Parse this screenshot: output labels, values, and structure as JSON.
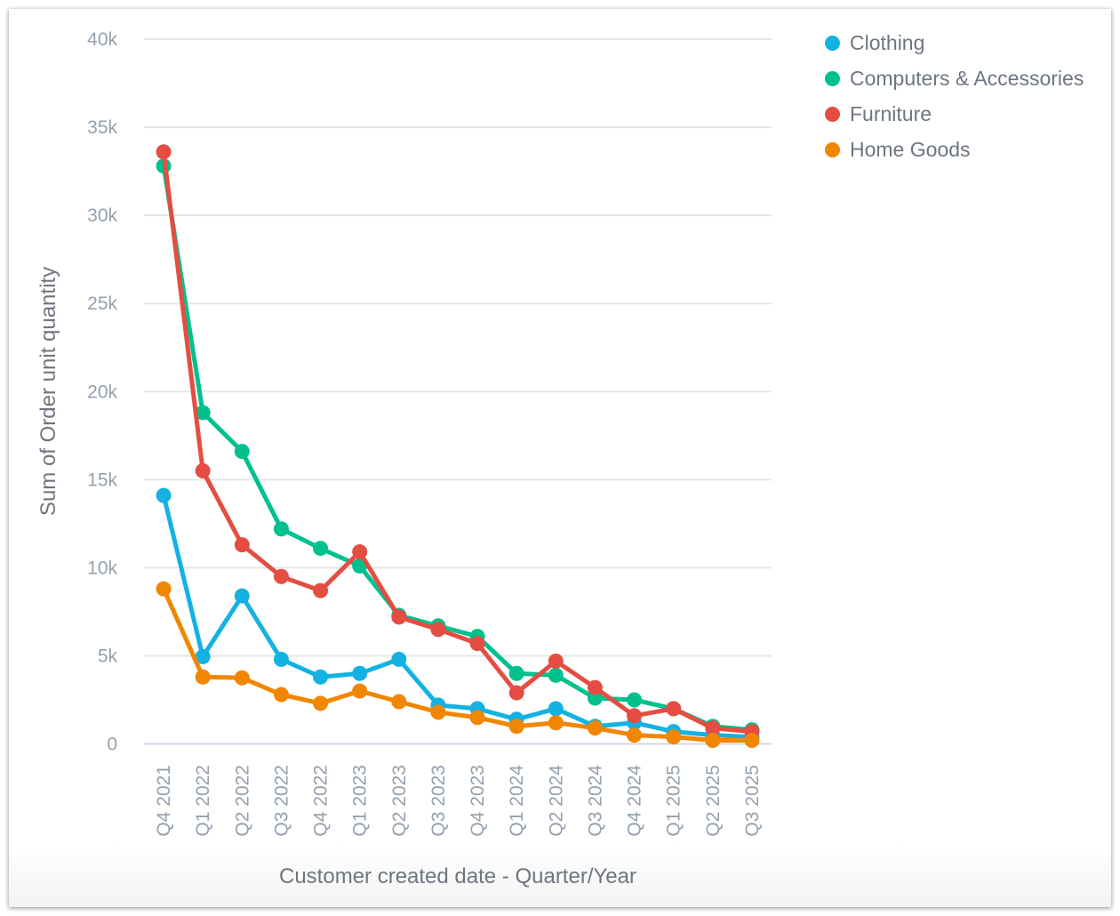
{
  "chart_data": {
    "type": "line",
    "title": "",
    "xlabel": "Customer created date - Quarter/Year",
    "ylabel": "Sum of Order unit quantity",
    "ylim": [
      0,
      40000
    ],
    "yticks": [
      0,
      5000,
      10000,
      15000,
      20000,
      25000,
      30000,
      35000,
      40000
    ],
    "ytick_labels": [
      "0",
      "5k",
      "10k",
      "15k",
      "20k",
      "25k",
      "30k",
      "35k",
      "40k"
    ],
    "grid": true,
    "legend_position": "top-right",
    "categories": [
      "Q4 2021",
      "Q1 2022",
      "Q2 2022",
      "Q3 2022",
      "Q4 2022",
      "Q1 2023",
      "Q2 2023",
      "Q3 2023",
      "Q4 2023",
      "Q1 2024",
      "Q2 2024",
      "Q3 2024",
      "Q4 2024",
      "Q1 2025",
      "Q2 2025",
      "Q3 2025"
    ],
    "series": [
      {
        "name": "Clothing",
        "color": "#14b2e2",
        "values": [
          14100,
          4950,
          8400,
          4800,
          3800,
          4000,
          4800,
          2200,
          2000,
          1400,
          2000,
          1000,
          1200,
          700,
          500,
          400
        ]
      },
      {
        "name": "Computers & Accessories",
        "color": "#00c18d",
        "values": [
          32800,
          18800,
          16600,
          12200,
          11100,
          10100,
          7300,
          6700,
          6100,
          4000,
          3900,
          2600,
          2500,
          2000,
          1000,
          800
        ]
      },
      {
        "name": "Furniture",
        "color": "#e54d42",
        "values": [
          33600,
          15500,
          11300,
          9500,
          8700,
          10900,
          7200,
          6500,
          5700,
          2900,
          4700,
          3200,
          1600,
          2000,
          900,
          700
        ]
      },
      {
        "name": "Home Goods",
        "color": "#f18600",
        "values": [
          8800,
          3800,
          3750,
          2800,
          2300,
          3000,
          2400,
          1800,
          1500,
          1000,
          1200,
          900,
          500,
          400,
          200,
          200
        ]
      }
    ]
  },
  "legend": {
    "items": [
      {
        "label": "Clothing",
        "color": "#14b2e2"
      },
      {
        "label": "Computers & Accessories",
        "color": "#00c18d"
      },
      {
        "label": "Furniture",
        "color": "#e54d42"
      },
      {
        "label": "Home Goods",
        "color": "#f18600"
      }
    ]
  },
  "colors": {
    "grid": "#e6e6e6",
    "axis_line": "#ccd6eb",
    "tick_text": "#94a1ad",
    "title_text": "#6d7680"
  }
}
